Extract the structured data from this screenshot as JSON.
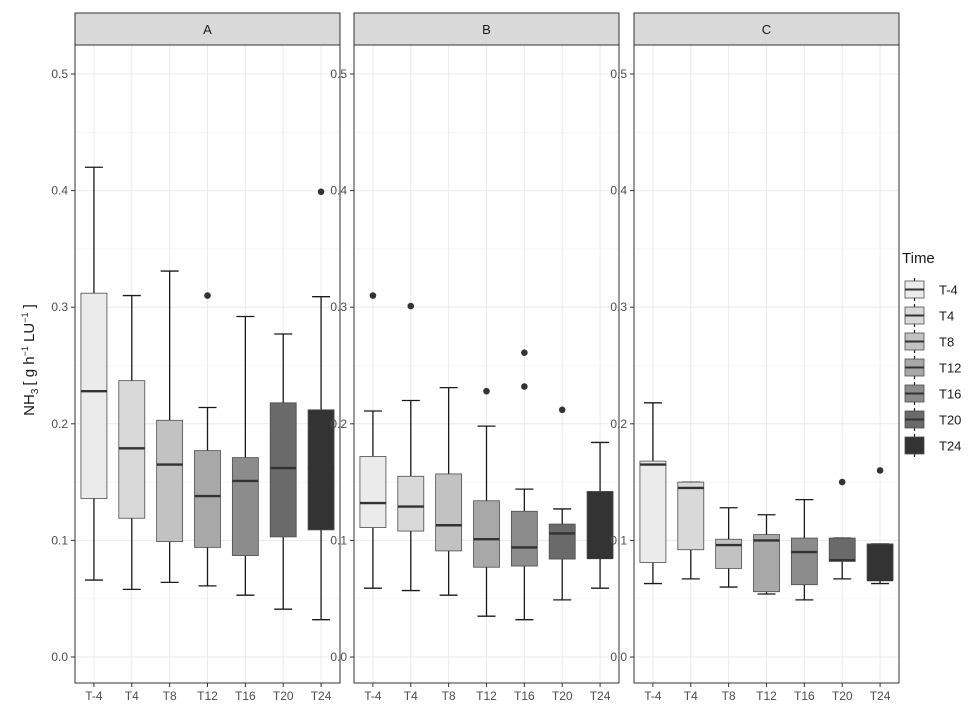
{
  "chart_data": {
    "type": "boxplot",
    "facets": [
      "A",
      "B",
      "C"
    ],
    "categories": [
      "T-4",
      "T4",
      "T8",
      "T12",
      "T16",
      "T20",
      "T24"
    ],
    "y_axis": {
      "label_main": "NH",
      "label_sub": "3",
      "label_rest": "[ g h",
      "label_sup1": "−1",
      "label_mid": " LU",
      "label_sup2": "−1",
      "label_end": " ]",
      "ylim": [
        -0.02,
        0.52
      ],
      "ticks": [
        0.0,
        0.1,
        0.2,
        0.3,
        0.4,
        0.5
      ],
      "tick_labels": [
        "0.0",
        "0.1",
        "0.2",
        "0.3",
        "0.4",
        "0.5"
      ]
    },
    "legend": {
      "title": "Time",
      "position": "right",
      "entries": [
        "T-4",
        "T4",
        "T8",
        "T12",
        "T16",
        "T20",
        "T24"
      ]
    },
    "colors": [
      "#ebebeb",
      "#d9d9d9",
      "#c2c2c2",
      "#a8a8a8",
      "#8c8c8c",
      "#6a6a6a",
      "#333333"
    ],
    "grid": true,
    "panels": [
      {
        "facet": "A",
        "boxes": [
          {
            "category": "T-4",
            "lower_whisker": 0.066,
            "q1": 0.136,
            "median": 0.228,
            "q3": 0.312,
            "upper_whisker": 0.42,
            "outliers": []
          },
          {
            "category": "T4",
            "lower_whisker": 0.058,
            "q1": 0.119,
            "median": 0.179,
            "q3": 0.237,
            "upper_whisker": 0.31,
            "outliers": []
          },
          {
            "category": "T8",
            "lower_whisker": 0.064,
            "q1": 0.099,
            "median": 0.165,
            "q3": 0.203,
            "upper_whisker": 0.331,
            "outliers": []
          },
          {
            "category": "T12",
            "lower_whisker": 0.061,
            "q1": 0.094,
            "median": 0.138,
            "q3": 0.177,
            "upper_whisker": 0.214,
            "outliers": [
              0.31
            ]
          },
          {
            "category": "T16",
            "lower_whisker": 0.053,
            "q1": 0.087,
            "median": 0.151,
            "q3": 0.171,
            "upper_whisker": 0.292,
            "outliers": []
          },
          {
            "category": "T20",
            "lower_whisker": 0.041,
            "q1": 0.103,
            "median": 0.162,
            "q3": 0.218,
            "upper_whisker": 0.277,
            "outliers": []
          },
          {
            "category": "T24",
            "lower_whisker": 0.032,
            "q1": 0.109,
            "median": 0.162,
            "q3": 0.212,
            "upper_whisker": 0.309,
            "outliers": [
              0.399
            ]
          }
        ]
      },
      {
        "facet": "B",
        "boxes": [
          {
            "category": "T-4",
            "lower_whisker": 0.059,
            "q1": 0.111,
            "median": 0.132,
            "q3": 0.172,
            "upper_whisker": 0.211,
            "outliers": [
              0.31
            ]
          },
          {
            "category": "T4",
            "lower_whisker": 0.057,
            "q1": 0.108,
            "median": 0.129,
            "q3": 0.155,
            "upper_whisker": 0.22,
            "outliers": [
              0.301
            ]
          },
          {
            "category": "T8",
            "lower_whisker": 0.053,
            "q1": 0.091,
            "median": 0.113,
            "q3": 0.157,
            "upper_whisker": 0.231,
            "outliers": []
          },
          {
            "category": "T12",
            "lower_whisker": 0.035,
            "q1": 0.077,
            "median": 0.101,
            "q3": 0.134,
            "upper_whisker": 0.198,
            "outliers": [
              0.228
            ]
          },
          {
            "category": "T16",
            "lower_whisker": 0.032,
            "q1": 0.078,
            "median": 0.094,
            "q3": 0.125,
            "upper_whisker": 0.144,
            "outliers": [
              0.232,
              0.261
            ]
          },
          {
            "category": "T20",
            "lower_whisker": 0.049,
            "q1": 0.084,
            "median": 0.106,
            "q3": 0.114,
            "upper_whisker": 0.127,
            "outliers": [
              0.212
            ]
          },
          {
            "category": "T24",
            "lower_whisker": 0.059,
            "q1": 0.085,
            "median": 0.085,
            "q3": 0.142,
            "upper_whisker": 0.184,
            "outliers": []
          }
        ]
      },
      {
        "facet": "C",
        "boxes": [
          {
            "category": "T-4",
            "lower_whisker": 0.063,
            "q1": 0.081,
            "median": 0.165,
            "q3": 0.168,
            "upper_whisker": 0.218,
            "outliers": []
          },
          {
            "category": "T4",
            "lower_whisker": 0.067,
            "q1": 0.092,
            "median": 0.145,
            "q3": 0.15,
            "upper_whisker": 0.15,
            "outliers": []
          },
          {
            "category": "T8",
            "lower_whisker": 0.06,
            "q1": 0.076,
            "median": 0.096,
            "q3": 0.101,
            "upper_whisker": 0.128,
            "outliers": []
          },
          {
            "category": "T12",
            "lower_whisker": 0.054,
            "q1": 0.056,
            "median": 0.1,
            "q3": 0.105,
            "upper_whisker": 0.122,
            "outliers": []
          },
          {
            "category": "T16",
            "lower_whisker": 0.049,
            "q1": 0.062,
            "median": 0.09,
            "q3": 0.102,
            "upper_whisker": 0.135,
            "outliers": []
          },
          {
            "category": "T20",
            "lower_whisker": 0.067,
            "q1": 0.082,
            "median": 0.083,
            "q3": 0.102,
            "upper_whisker": 0.102,
            "outliers": [
              0.15
            ]
          },
          {
            "category": "T24",
            "lower_whisker": 0.063,
            "q1": 0.066,
            "median": 0.066,
            "q3": 0.097,
            "upper_whisker": 0.097,
            "outliers": [
              0.16
            ]
          }
        ]
      }
    ]
  }
}
